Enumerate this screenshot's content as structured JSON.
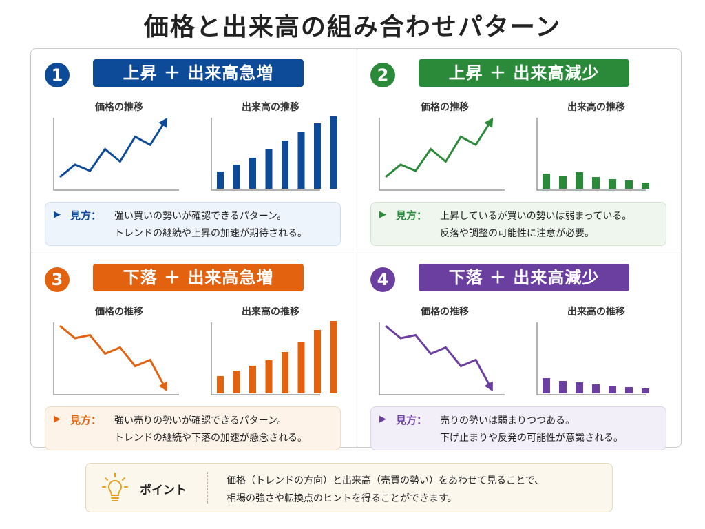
{
  "title": "価格と出来高の組み合わせパターン",
  "colors": {
    "blue": "#0d4a97",
    "green": "#2a8a3a",
    "orange": "#e2620f",
    "purple": "#6b3fa0"
  },
  "price_chart_title": "価格の推移",
  "volume_chart_title": "出来高の推移",
  "note_label": "見方：",
  "panels": [
    {
      "number": "1",
      "tag": "上昇 ＋ 出来高急増",
      "color": "#0d4a97",
      "note_bg": "#eef4fc",
      "note_border": "#cfdcef",
      "note_line1": "強い買いの勢いが確認できるパターン。",
      "note_line2": "トレンドの継続や上昇の加速が期待される。",
      "price_trend": [
        10,
        30,
        20,
        55,
        35,
        75,
        62,
        100
      ],
      "volume": [
        25,
        35,
        45,
        58,
        70,
        82,
        95,
        105
      ]
    },
    {
      "number": "2",
      "tag": "上昇 ＋ 出来高減少",
      "color": "#2a8a3a",
      "note_bg": "#eef6ee",
      "note_border": "#cfe3cf",
      "note_line1": "上昇しているが買いの勢いは弱まっている。",
      "note_line2": "反落や調整の可能性に注意が必要。",
      "price_trend": [
        10,
        30,
        20,
        55,
        35,
        75,
        62,
        100
      ],
      "volume": [
        22,
        18,
        24,
        17,
        14,
        12,
        9
      ]
    },
    {
      "number": "3",
      "tag": "下落 ＋ 出来高急増",
      "color": "#e2620f",
      "note_bg": "#fdf3e9",
      "note_border": "#f1d9bf",
      "note_line1": "強い売りの勢いが確認できるパターン。",
      "note_line2": "トレンドの継続や下落の加速が懸念される。",
      "price_trend": [
        100,
        80,
        85,
        55,
        65,
        35,
        45,
        0
      ],
      "volume": [
        25,
        33,
        40,
        48,
        60,
        75,
        92,
        105
      ]
    },
    {
      "number": "4",
      "tag": "下落 ＋ 出来高減少",
      "color": "#6b3fa0",
      "note_bg": "#f3eff8",
      "note_border": "#dbd2e8",
      "note_line1": "売りの勢いは弱まりつつある。",
      "note_line2": "下げ止まりや反発の可能性が意識される。",
      "price_trend": [
        100,
        80,
        85,
        55,
        65,
        35,
        45,
        0
      ],
      "volume": [
        22,
        18,
        16,
        13,
        11,
        9,
        7
      ]
    }
  ],
  "point": {
    "label": "ポイント",
    "line1": "価格（トレンドの方向）と出来高（売買の勢い）をあわせて見ることで、",
    "line2": "相場の強さや転換点のヒントを得ることができます。",
    "icon": "lightbulb-icon"
  }
}
